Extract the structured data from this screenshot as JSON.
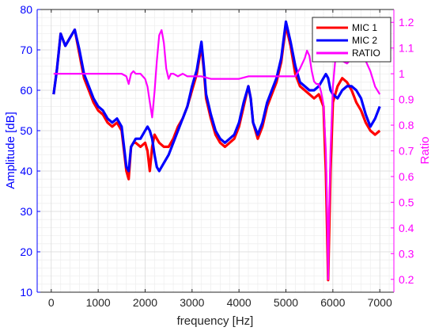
{
  "chart_data": {
    "type": "line",
    "xlabel": "frequency [Hz]",
    "ylabel_left": "Amplitude   [dB]",
    "ylabel_right": "Ratio",
    "xlim": [
      -300,
      7300
    ],
    "ylim_left": [
      10,
      80
    ],
    "ylim_right": [
      0.15,
      1.25
    ],
    "x_ticks": [
      0,
      1000,
      2000,
      3000,
      4000,
      5000,
      6000,
      7000
    ],
    "x_tick_labels": [
      "0",
      "1000",
      "2000",
      "3000",
      "4000",
      "5000",
      "6000",
      "7000"
    ],
    "y_left_ticks": [
      10,
      20,
      30,
      40,
      50,
      60,
      70,
      80
    ],
    "y_left_tick_labels": [
      "10",
      "20",
      "30",
      "40",
      "50",
      "60",
      "70",
      "80"
    ],
    "y_right_ticks": [
      0.2,
      0.3,
      0.4,
      0.5,
      0.6,
      0.7,
      0.8,
      0.9,
      1.0,
      1.1,
      1.2
    ],
    "y_right_tick_labels": [
      "0.2",
      "0.3",
      "0.4",
      "0.5",
      "0.6",
      "0.7",
      "0.8",
      "0.9",
      "1",
      "1.1",
      "1.2"
    ],
    "grid": true,
    "minor_grid": true,
    "legend_position": "top-right",
    "colors": {
      "left_axis": "#0000ff",
      "right_axis": "#ff00ff",
      "grid": "#d9d9d9"
    },
    "series": [
      {
        "name": "MIC 1",
        "axis": "left",
        "color": "#ff0000",
        "x": [
          50,
          120,
          200,
          300,
          400,
          500,
          600,
          700,
          800,
          900,
          1000,
          1100,
          1200,
          1300,
          1400,
          1500,
          1550,
          1600,
          1650,
          1700,
          1750,
          1800,
          1900,
          2000,
          2050,
          2100,
          2150,
          2200,
          2250,
          2300,
          2400,
          2500,
          2600,
          2700,
          2800,
          2900,
          3000,
          3100,
          3200,
          3250,
          3300,
          3400,
          3500,
          3600,
          3700,
          3800,
          3900,
          4000,
          4100,
          4200,
          4250,
          4300,
          4400,
          4500,
          4600,
          4700,
          4800,
          4900,
          5000,
          5100,
          5200,
          5300,
          5400,
          5500,
          5600,
          5700,
          5800,
          5850,
          5900,
          5950,
          6000,
          6100,
          6200,
          6300,
          6400,
          6500,
          6600,
          6700,
          6800,
          6900,
          7000
        ],
        "y": [
          59,
          65,
          74,
          71,
          73,
          75,
          69,
          63,
          60,
          57,
          55,
          54,
          52,
          51,
          52,
          50,
          45,
          40,
          38,
          46,
          47,
          47,
          46,
          47,
          45,
          40,
          46,
          49,
          48,
          47,
          46,
          46,
          48,
          51,
          53,
          56,
          60,
          64,
          71,
          65,
          58,
          53,
          49,
          47,
          46,
          47,
          48,
          51,
          56,
          61,
          58,
          52,
          48,
          51,
          56,
          59,
          62,
          67,
          76,
          71,
          64,
          61,
          60,
          59,
          58,
          59,
          56,
          40,
          13,
          40,
          57,
          61,
          63,
          62,
          60,
          57,
          55,
          52,
          50,
          49,
          50
        ]
      },
      {
        "name": "MIC 2",
        "axis": "left",
        "color": "#0000ff",
        "x": [
          50,
          120,
          200,
          300,
          400,
          500,
          600,
          700,
          800,
          900,
          1000,
          1100,
          1200,
          1300,
          1400,
          1500,
          1550,
          1600,
          1650,
          1700,
          1750,
          1800,
          1900,
          2000,
          2050,
          2100,
          2150,
          2200,
          2250,
          2300,
          2400,
          2500,
          2600,
          2700,
          2800,
          2900,
          3000,
          3100,
          3200,
          3250,
          3300,
          3400,
          3500,
          3600,
          3700,
          3800,
          3900,
          4000,
          4100,
          4200,
          4250,
          4300,
          4400,
          4500,
          4600,
          4700,
          4800,
          4900,
          5000,
          5100,
          5200,
          5300,
          5400,
          5500,
          5600,
          5700,
          5800,
          5850,
          5900,
          5950,
          6000,
          6100,
          6200,
          6300,
          6400,
          6500,
          6600,
          6700,
          6800,
          6900,
          7000
        ],
        "y": [
          59,
          65,
          74,
          71,
          73,
          75,
          70,
          64,
          61,
          58,
          56,
          55,
          53,
          52,
          53,
          51,
          46,
          41,
          40,
          46,
          47,
          48,
          48,
          50,
          51,
          50,
          48,
          44,
          41,
          40,
          42,
          44,
          47,
          50,
          53,
          56,
          61,
          65,
          72,
          66,
          59,
          54,
          50,
          48,
          47,
          48,
          49,
          52,
          57,
          61,
          58,
          52,
          49,
          52,
          57,
          60,
          63,
          68,
          77,
          72,
          66,
          62,
          61,
          60,
          60,
          61,
          63,
          64,
          63,
          60,
          59,
          58,
          60,
          61,
          61,
          60,
          58,
          54,
          51,
          53,
          56
        ]
      },
      {
        "name": "RATIO",
        "axis": "right",
        "color": "#ff00ff",
        "x": [
          50,
          300,
          600,
          900,
          1200,
          1500,
          1600,
          1650,
          1700,
          1750,
          1800,
          1900,
          2000,
          2050,
          2100,
          2150,
          2200,
          2250,
          2300,
          2350,
          2400,
          2450,
          2500,
          2550,
          2600,
          2700,
          2800,
          2900,
          3000,
          3200,
          3400,
          3600,
          3800,
          4000,
          4200,
          4400,
          4600,
          4800,
          5000,
          5200,
          5300,
          5400,
          5450,
          5500,
          5550,
          5600,
          5650,
          5700,
          5750,
          5800,
          5850,
          5880,
          5900,
          5920,
          5950,
          6000,
          6050,
          6100,
          6200,
          6300,
          6400,
          6500,
          6600,
          6700,
          6800,
          6900,
          7000
        ],
        "y": [
          1.0,
          1.0,
          1.0,
          1.0,
          1.0,
          1.0,
          0.99,
          0.96,
          1.0,
          1.01,
          1.0,
          1.0,
          0.98,
          0.95,
          0.89,
          0.83,
          0.93,
          1.05,
          1.15,
          1.17,
          1.12,
          1.02,
          0.98,
          1.0,
          1.0,
          0.99,
          1.0,
          0.99,
          0.99,
          0.99,
          0.98,
          0.98,
          0.98,
          0.98,
          0.99,
          0.99,
          0.99,
          0.99,
          0.99,
          0.99,
          1.02,
          1.06,
          1.09,
          1.07,
          1.01,
          0.97,
          0.96,
          0.96,
          0.93,
          0.88,
          0.7,
          0.45,
          0.2,
          0.45,
          0.7,
          0.95,
          1.05,
          1.08,
          1.05,
          1.04,
          1.06,
          1.08,
          1.08,
          1.05,
          1.01,
          0.95,
          0.92
        ]
      }
    ]
  }
}
